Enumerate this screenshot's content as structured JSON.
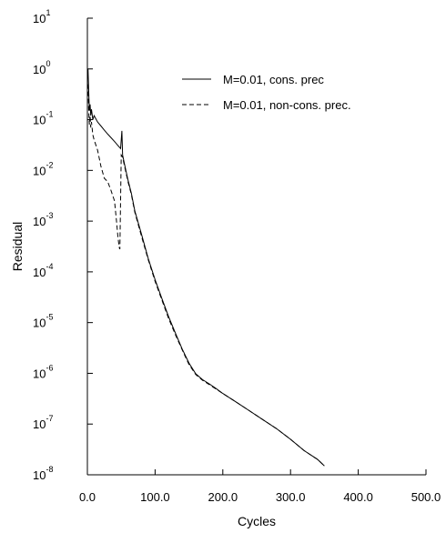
{
  "chart_data": {
    "type": "line",
    "title": "",
    "xlabel": "Cycles",
    "ylabel": "Residual",
    "x_range": [
      0,
      500
    ],
    "y_range": [
      1e-08,
      10
    ],
    "y_scale": "log",
    "grid": false,
    "legend_position": "top-right",
    "x_ticks": [
      {
        "value": 0,
        "label": "0.0"
      },
      {
        "value": 100,
        "label": "100.0"
      },
      {
        "value": 200,
        "label": "200.0"
      },
      {
        "value": 300,
        "label": "300.0"
      },
      {
        "value": 400,
        "label": "400.0"
      },
      {
        "value": 500,
        "label": "500.0"
      }
    ],
    "y_ticks": [
      {
        "value": 10,
        "base": "10",
        "exp": "1"
      },
      {
        "value": 1,
        "base": "10",
        "exp": "0"
      },
      {
        "value": 0.1,
        "base": "10",
        "exp": "-1"
      },
      {
        "value": 0.01,
        "base": "10",
        "exp": "-2"
      },
      {
        "value": 0.001,
        "base": "10",
        "exp": "-3"
      },
      {
        "value": 0.0001,
        "base": "10",
        "exp": "-4"
      },
      {
        "value": 1e-05,
        "base": "10",
        "exp": "-5"
      },
      {
        "value": 1e-06,
        "base": "10",
        "exp": "-6"
      },
      {
        "value": 1e-07,
        "base": "10",
        "exp": "-7"
      },
      {
        "value": 1e-08,
        "base": "10",
        "exp": "-8"
      }
    ],
    "series": [
      {
        "name": "M=0.01, cons. prec",
        "style": "solid",
        "color": "#000000",
        "x": [
          1,
          2,
          3,
          4,
          5,
          6,
          8,
          10,
          15,
          20,
          25,
          30,
          35,
          40,
          45,
          49,
          50,
          51,
          52,
          55,
          60,
          65,
          70,
          80,
          90,
          100,
          110,
          120,
          130,
          140,
          150,
          160,
          170,
          180,
          190,
          200,
          220,
          240,
          260,
          280,
          300,
          320,
          340,
          350
        ],
        "y": [
          1.0,
          0.35,
          0.15,
          0.2,
          0.12,
          0.16,
          0.1,
          0.12,
          0.09,
          0.075,
          0.062,
          0.052,
          0.044,
          0.037,
          0.031,
          0.027,
          0.04,
          0.06,
          0.02,
          0.013,
          0.0065,
          0.0035,
          0.0016,
          0.00055,
          0.00018,
          7e-05,
          3e-05,
          1.3e-05,
          6.2e-06,
          3e-06,
          1.6e-06,
          9.8e-07,
          7.5e-07,
          6.2e-07,
          5e-07,
          4e-07,
          2.7e-07,
          1.8e-07,
          1.2e-07,
          8e-08,
          5e-08,
          3e-08,
          2e-08,
          1.5e-08
        ]
      },
      {
        "name": "M=0.01, non-cons. prec.",
        "style": "dashed",
        "color": "#000000",
        "x": [
          1,
          2,
          3,
          4,
          5,
          6,
          8,
          10,
          15,
          20,
          25,
          30,
          35,
          40,
          43,
          45,
          47,
          48,
          50,
          52,
          55,
          60,
          65,
          70,
          80,
          90,
          100,
          110,
          120,
          130,
          140,
          150,
          160,
          170,
          180,
          190,
          200,
          220,
          240,
          260,
          280,
          300,
          320,
          340,
          350
        ],
        "y": [
          0.5,
          0.15,
          0.08,
          0.12,
          0.07,
          0.09,
          0.05,
          0.04,
          0.025,
          0.012,
          0.007,
          0.006,
          0.004,
          0.0025,
          0.001,
          0.0005,
          0.0003,
          0.00028,
          0.02,
          0.018,
          0.012,
          0.006,
          0.0033,
          0.0015,
          0.0005,
          0.00017,
          6.5e-05,
          2.8e-05,
          1.2e-05,
          5.8e-06,
          2.9e-06,
          1.5e-06,
          9.5e-07,
          7.3e-07,
          6e-07,
          4.9e-07,
          4e-07,
          2.7e-07,
          1.8e-07,
          1.2e-07,
          8e-08,
          5e-08,
          3e-08,
          2e-08,
          1.5e-08
        ]
      }
    ]
  }
}
